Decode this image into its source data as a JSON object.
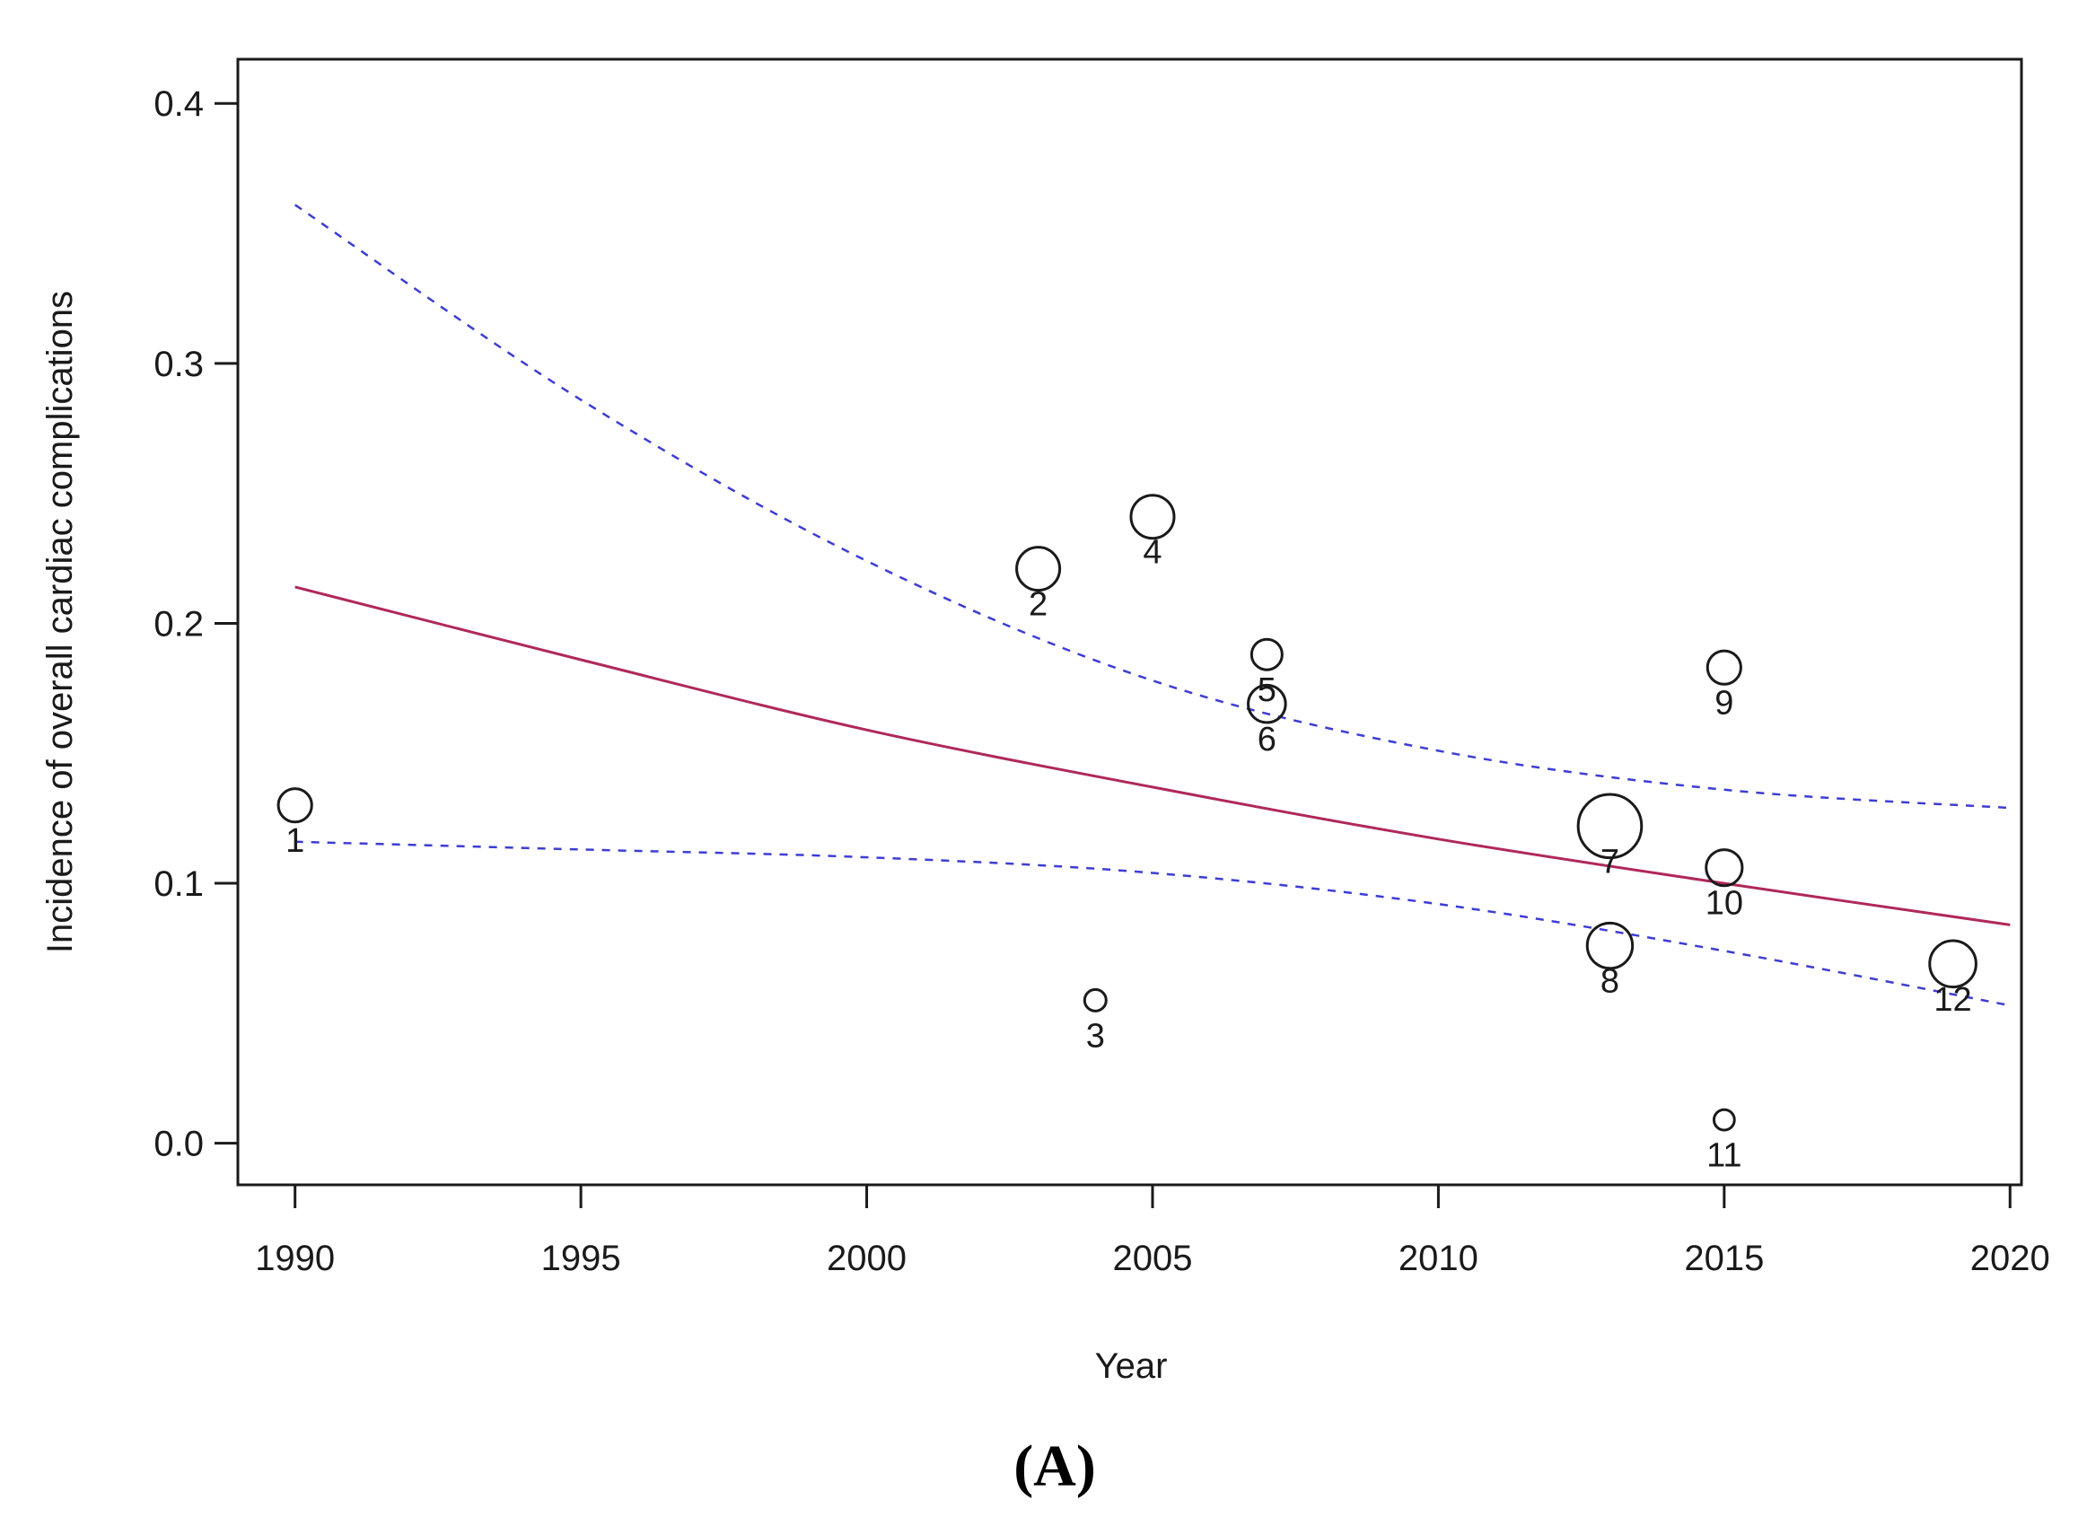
{
  "chart_data": {
    "type": "scatter",
    "panel_label": "(A)",
    "xlabel": "Year",
    "ylabel": "Incidence of overall cardiac complications",
    "xlim": [
      1989,
      2020.2
    ],
    "ylim": [
      -0.016,
      0.417
    ],
    "xticks": [
      1990,
      1995,
      2000,
      2005,
      2010,
      2015,
      2020
    ],
    "yticks": [
      0.0,
      0.1,
      0.2,
      0.3,
      0.4
    ],
    "ytick_labels": [
      "0.0",
      "0.1",
      "0.2",
      "0.3",
      "0.4"
    ],
    "points": [
      {
        "label": "1",
        "x": 1990,
        "y": 0.13,
        "weight": 1.2
      },
      {
        "label": "2",
        "x": 2003,
        "y": 0.221,
        "weight": 2.0
      },
      {
        "label": "3",
        "x": 2004,
        "y": 0.055,
        "weight": 0.5
      },
      {
        "label": "4",
        "x": 2005,
        "y": 0.241,
        "weight": 2.0
      },
      {
        "label": "5",
        "x": 2007,
        "y": 0.188,
        "weight": 1.0
      },
      {
        "label": "6",
        "x": 2007,
        "y": 0.169,
        "weight": 1.5
      },
      {
        "label": "7",
        "x": 2013,
        "y": 0.122,
        "weight": 4.3
      },
      {
        "label": "8",
        "x": 2013,
        "y": 0.076,
        "weight": 2.2
      },
      {
        "label": "9",
        "x": 2015,
        "y": 0.183,
        "weight": 1.2
      },
      {
        "label": "10",
        "x": 2015,
        "y": 0.106,
        "weight": 1.4
      },
      {
        "label": "11",
        "x": 2015,
        "y": 0.009,
        "weight": 0.45
      },
      {
        "label": "12",
        "x": 2019,
        "y": 0.069,
        "weight": 2.3
      }
    ],
    "series": [
      {
        "name": "regression fit",
        "style": "solid",
        "color": "#b0285a",
        "x": [
          1990,
          1995,
          2000,
          2005,
          2010,
          2015,
          2020
        ],
        "values": [
          0.214,
          0.186,
          0.159,
          0.137,
          0.117,
          0.1,
          0.084
        ]
      },
      {
        "name": "upper 95% CI",
        "style": "dashed",
        "color": "#3d3dd4",
        "x": [
          1990,
          1995,
          2000,
          2005,
          2010,
          2015,
          2020
        ],
        "values": [
          0.361,
          0.286,
          0.224,
          0.178,
          0.151,
          0.136,
          0.129
        ]
      },
      {
        "name": "lower 95% CI",
        "style": "dashed",
        "color": "#3d3dd4",
        "x": [
          1990,
          1995,
          2000,
          2005,
          2010,
          2015,
          2020
        ],
        "values": [
          0.116,
          0.113,
          0.11,
          0.104,
          0.092,
          0.074,
          0.053
        ]
      }
    ]
  }
}
